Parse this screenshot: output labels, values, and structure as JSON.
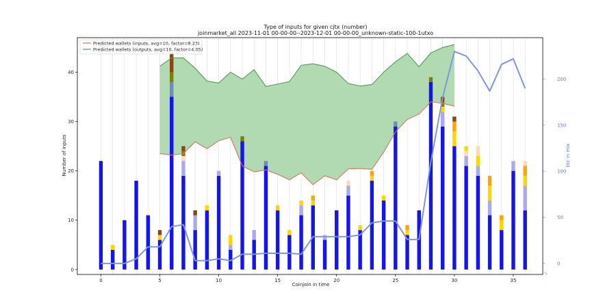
{
  "chart_data": {
    "type": "bar",
    "title": "Type of inputs for given cjtx (number)",
    "subtitle": "joinmarket_all 2023-11-01 00-00-00--2023-12-01 00-00-00_unknown-static-100-1utxo",
    "xlabel": "Coinjoin in time",
    "ylabel": "Number of inputs",
    "y2label": "btc in mix",
    "xlim": [
      -2,
      37.5
    ],
    "ylim": [
      -1,
      47
    ],
    "y2lim": [
      -12,
      245
    ],
    "xticks": [
      0,
      5,
      10,
      15,
      20,
      25,
      30,
      35
    ],
    "yticks": [
      0,
      10,
      20,
      30,
      40
    ],
    "y2ticks": [
      0,
      50,
      100,
      150,
      200
    ],
    "grid": "vertical",
    "legend_position": "top-left",
    "colors": {
      "blue": "#1414ee",
      "lightblue": "#aaaaee",
      "steel": "#6f8faf",
      "gold": "#ffd700",
      "orange": "#ffa500",
      "peach": "#ffdab9",
      "olive": "#808000",
      "brown": "#8b4513",
      "btc_line": "#7b96e0",
      "inputs_line": "#e07060",
      "outputs_line": "#4f9f4f",
      "fill": "#b2dab2"
    },
    "bars": [
      {
        "x": 0,
        "seg": [
          [
            22,
            "blue"
          ]
        ]
      },
      {
        "x": 1,
        "seg": [
          [
            4,
            "blue"
          ],
          [
            1,
            "gold"
          ]
        ]
      },
      {
        "x": 2,
        "seg": [
          [
            10,
            "blue"
          ]
        ]
      },
      {
        "x": 3,
        "seg": [
          [
            18,
            "blue"
          ]
        ]
      },
      {
        "x": 4,
        "seg": [
          [
            11,
            "blue"
          ]
        ]
      },
      {
        "x": 5,
        "seg": [
          [
            6,
            "blue"
          ],
          [
            1,
            "gold"
          ],
          [
            1,
            "brown"
          ]
        ]
      },
      {
        "x": 6,
        "seg": [
          [
            35,
            "blue"
          ],
          [
            3,
            "steel"
          ],
          [
            2,
            "olive"
          ],
          [
            4,
            "brown"
          ]
        ]
      },
      {
        "x": 7,
        "seg": [
          [
            19,
            "blue"
          ],
          [
            3,
            "lightblue"
          ],
          [
            1,
            "peach"
          ],
          [
            1,
            "olive"
          ],
          [
            1,
            "brown"
          ]
        ]
      },
      {
        "x": 8,
        "seg": [
          [
            8,
            "blue"
          ],
          [
            3,
            "lightblue"
          ],
          [
            1,
            "brown"
          ]
        ]
      },
      {
        "x": 9,
        "seg": [
          [
            12,
            "blue"
          ],
          [
            1,
            "gold"
          ]
        ]
      },
      {
        "x": 10,
        "seg": [
          [
            19,
            "blue"
          ],
          [
            1,
            "lightblue"
          ]
        ]
      },
      {
        "x": 11,
        "seg": [
          [
            4,
            "blue"
          ],
          [
            1,
            "lightblue"
          ],
          [
            2,
            "gold"
          ]
        ]
      },
      {
        "x": 12,
        "seg": [
          [
            26,
            "blue"
          ],
          [
            1,
            "olive"
          ]
        ]
      },
      {
        "x": 13,
        "seg": [
          [
            6,
            "blue"
          ],
          [
            2,
            "lightblue"
          ]
        ]
      },
      {
        "x": 14,
        "seg": [
          [
            21,
            "blue"
          ],
          [
            1,
            "steel"
          ]
        ]
      },
      {
        "x": 15,
        "seg": [
          [
            12,
            "blue"
          ],
          [
            1,
            "gold"
          ]
        ]
      },
      {
        "x": 16,
        "seg": [
          [
            7,
            "blue"
          ],
          [
            1,
            "gold"
          ]
        ]
      },
      {
        "x": 17,
        "seg": [
          [
            11,
            "blue"
          ],
          [
            2,
            "lightblue"
          ],
          [
            1,
            "gold"
          ]
        ]
      },
      {
        "x": 18,
        "seg": [
          [
            13,
            "blue"
          ],
          [
            1,
            "gold"
          ],
          [
            1,
            "orange"
          ]
        ]
      },
      {
        "x": 19,
        "seg": [
          [
            6,
            "blue"
          ],
          [
            1,
            "lightblue"
          ]
        ]
      },
      {
        "x": 20,
        "seg": [
          [
            12,
            "blue"
          ]
        ]
      },
      {
        "x": 21,
        "seg": [
          [
            15,
            "blue"
          ],
          [
            2,
            "lightblue"
          ],
          [
            1,
            "peach"
          ]
        ]
      },
      {
        "x": 22,
        "seg": [
          [
            8,
            "blue"
          ],
          [
            1,
            "gold"
          ]
        ]
      },
      {
        "x": 23,
        "seg": [
          [
            18,
            "blue"
          ],
          [
            1,
            "gold"
          ],
          [
            1,
            "orange"
          ]
        ]
      },
      {
        "x": 24,
        "seg": [
          [
            14,
            "blue"
          ],
          [
            1,
            "gold"
          ]
        ]
      },
      {
        "x": 25,
        "seg": [
          [
            29,
            "blue"
          ],
          [
            1,
            "steel"
          ]
        ]
      },
      {
        "x": 26,
        "seg": [
          [
            7,
            "blue"
          ],
          [
            1,
            "gold"
          ],
          [
            1,
            "orange"
          ]
        ]
      },
      {
        "x": 27,
        "seg": [
          [
            12,
            "blue"
          ]
        ]
      },
      {
        "x": 28,
        "seg": [
          [
            38,
            "blue"
          ],
          [
            1,
            "olive"
          ]
        ]
      },
      {
        "x": 29,
        "seg": [
          [
            29,
            "blue"
          ],
          [
            3,
            "lightblue"
          ],
          [
            1,
            "gold"
          ],
          [
            1,
            "olive"
          ],
          [
            1,
            "brown"
          ]
        ]
      },
      {
        "x": 30,
        "seg": [
          [
            25,
            "blue"
          ],
          [
            3,
            "gold"
          ],
          [
            2,
            "orange"
          ],
          [
            1,
            "brown"
          ]
        ]
      },
      {
        "x": 31,
        "seg": [
          [
            21,
            "blue"
          ],
          [
            2,
            "lightblue"
          ],
          [
            1,
            "peach"
          ],
          [
            1,
            "gold"
          ]
        ]
      },
      {
        "x": 32,
        "seg": [
          [
            19,
            "blue"
          ],
          [
            2,
            "lightblue"
          ],
          [
            2,
            "gold"
          ],
          [
            2,
            "peach"
          ]
        ]
      },
      {
        "x": 33,
        "seg": [
          [
            11,
            "blue"
          ],
          [
            3,
            "lightblue"
          ],
          [
            3,
            "gold"
          ],
          [
            2,
            "orange"
          ]
        ]
      },
      {
        "x": 34,
        "seg": [
          [
            8,
            "blue"
          ],
          [
            2,
            "gold"
          ],
          [
            1,
            "orange"
          ]
        ]
      },
      {
        "x": 35,
        "seg": [
          [
            20,
            "blue"
          ],
          [
            2,
            "lightblue"
          ]
        ]
      },
      {
        "x": 36,
        "seg": [
          [
            12,
            "blue"
          ],
          [
            5,
            "lightblue"
          ],
          [
            2,
            "gold"
          ],
          [
            2,
            "orange"
          ],
          [
            1,
            "peach"
          ]
        ]
      }
    ],
    "series": [
      {
        "name": "Predicted wallets (inputs, avg=10, factor=8.23)",
        "color_key": "inputs_line",
        "x": [
          5,
          6,
          7,
          8,
          9,
          10,
          11,
          12,
          13,
          14,
          15,
          16,
          17,
          18,
          19,
          20,
          21,
          22,
          23,
          24,
          25,
          26,
          27,
          28,
          29,
          30
        ],
        "y": [
          23.5,
          23.2,
          23.5,
          25.9,
          24.5,
          26.1,
          26.8,
          21.0,
          19.8,
          20.2,
          19.3,
          18.2,
          19.6,
          17.2,
          19.0,
          18.2,
          20.4,
          20.5,
          20.3,
          23.8,
          27.9,
          30.4,
          31.5,
          34.0,
          33.7,
          33.1
        ]
      },
      {
        "name": "Predicted wallets (outputs, avg=10, factor=4.05)",
        "color_key": "outputs_line",
        "x": [
          5,
          6,
          7,
          8,
          9,
          10,
          11,
          12,
          13,
          14,
          15,
          16,
          17,
          18,
          19,
          20,
          21,
          22,
          23,
          24,
          25,
          26,
          27,
          28,
          29,
          30
        ],
        "y": [
          41.2,
          42.9,
          42.9,
          40.8,
          38.2,
          37.8,
          40.0,
          38.6,
          40.5,
          37.1,
          37.6,
          38.1,
          41.4,
          41.7,
          41.2,
          40.0,
          37.7,
          37.2,
          37.5,
          40.0,
          42.1,
          43.8,
          41.1,
          43.9,
          45.0,
          45.6
        ]
      },
      {
        "name": "btc in mix",
        "axis": "right",
        "color_key": "btc_line",
        "x": [
          0,
          1,
          2,
          3,
          4,
          5,
          6,
          7,
          8,
          9,
          10,
          11,
          12,
          13,
          14,
          15,
          16,
          17,
          18,
          19,
          20,
          21,
          22,
          23,
          24,
          25,
          26,
          27,
          28,
          29,
          30,
          31,
          32,
          33,
          34,
          35,
          36
        ],
        "y": [
          0,
          0,
          0,
          5,
          18,
          18,
          40,
          42,
          3,
          3,
          5,
          3,
          10,
          10,
          11,
          11,
          11,
          10,
          29,
          29,
          29,
          29,
          31,
          44,
          46,
          46,
          26,
          26,
          110,
          180,
          230,
          225,
          209,
          187,
          216,
          222,
          190
        ]
      }
    ]
  }
}
